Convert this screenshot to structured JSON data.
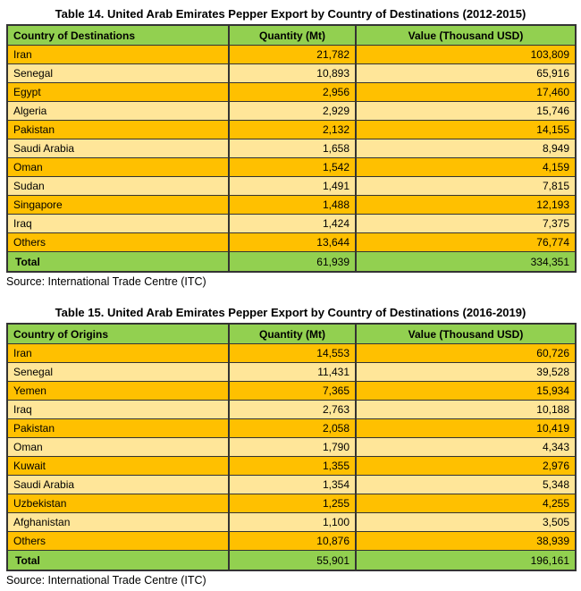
{
  "colors": {
    "header_green": "#92D050",
    "row_gold": "#FFC000",
    "row_light_gold": "#FFE699",
    "total_green": "#92D050",
    "border": "#333333",
    "text": "#000000"
  },
  "tables": [
    {
      "title": "Table 14. United Arab Emirates Pepper Export by Country of Destinations (2012-2015)",
      "headers": [
        "Country of Destinations",
        "Quantity (Mt)",
        "Value (Thousand USD)"
      ],
      "rows": [
        [
          "Iran",
          "21,782",
          "103,809"
        ],
        [
          "Senegal",
          "10,893",
          "65,916"
        ],
        [
          "Egypt",
          "2,956",
          "17,460"
        ],
        [
          "Algeria",
          "2,929",
          "15,746"
        ],
        [
          "Pakistan",
          "2,132",
          "14,155"
        ],
        [
          "Saudi Arabia",
          "1,658",
          "8,949"
        ],
        [
          "Oman",
          "1,542",
          "4,159"
        ],
        [
          "Sudan",
          "1,491",
          "7,815"
        ],
        [
          "Singapore",
          "1,488",
          "12,193"
        ],
        [
          "Iraq",
          "1,424",
          "7,375"
        ],
        [
          "Others",
          "13,644",
          "76,774"
        ]
      ],
      "total": [
        "Total",
        "61,939",
        "334,351"
      ],
      "source": "Source: International Trade Centre (ITC)"
    },
    {
      "title": "Table 15. United Arab Emirates Pepper Export by Country of Destinations (2016-2019)",
      "headers": [
        "Country of Origins",
        "Quantity (Mt)",
        "Value (Thousand USD)"
      ],
      "rows": [
        [
          "Iran",
          "14,553",
          "60,726"
        ],
        [
          "Senegal",
          "11,431",
          "39,528"
        ],
        [
          "Yemen",
          "7,365",
          "15,934"
        ],
        [
          "Iraq",
          "2,763",
          "10,188"
        ],
        [
          "Pakistan",
          "2,058",
          "10,419"
        ],
        [
          "Oman",
          "1,790",
          "4,343"
        ],
        [
          "Kuwait",
          "1,355",
          "2,976"
        ],
        [
          "Saudi Arabia",
          "1,354",
          "5,348"
        ],
        [
          "Uzbekistan",
          "1,255",
          "4,255"
        ],
        [
          "Afghanistan",
          "1,100",
          "3,505"
        ],
        [
          "Others",
          "10,876",
          "38,939"
        ]
      ],
      "total": [
        "Total",
        "55,901",
        "196,161"
      ],
      "source": "Source: International Trade Centre (ITC)"
    }
  ]
}
